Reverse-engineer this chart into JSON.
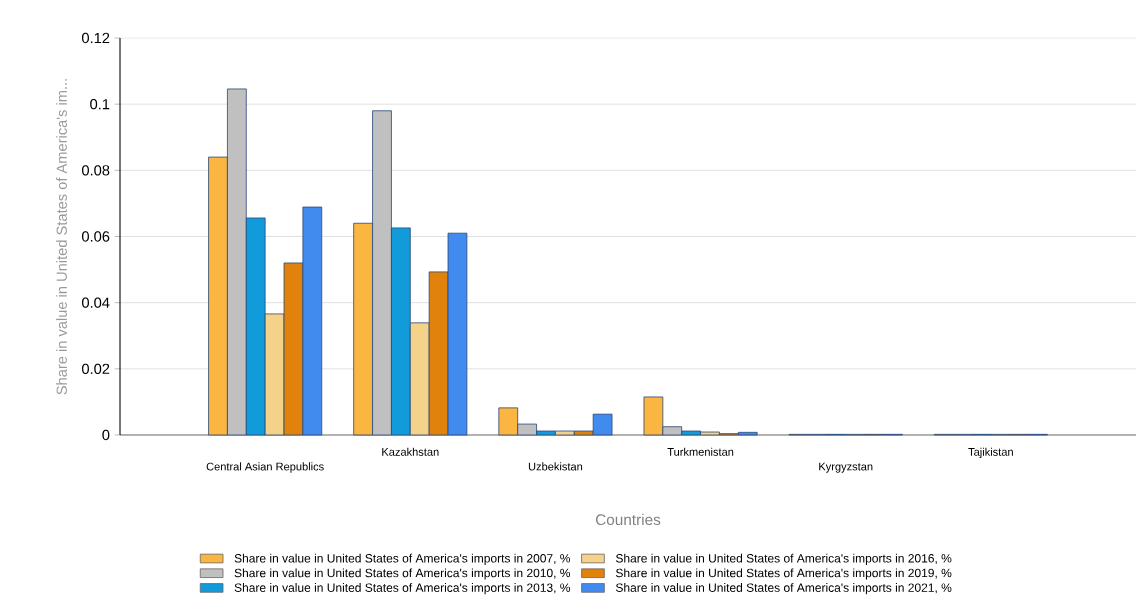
{
  "chart_data": {
    "type": "bar",
    "xlabel": "Countries",
    "ylabel": "Share in value in United States of America's im...",
    "categories": [
      "Central Asian Republics",
      "Kazakhstan",
      "Uzbekistan",
      "Turkmenistan",
      "Kyrgyzstan",
      "Tajikistan"
    ],
    "series": [
      {
        "name": "Share in value in United States of America's imports in 2007, %",
        "color": "#fbb642",
        "values": [
          0.084,
          0.064,
          0.0082,
          0.0115,
          0.0002,
          0.0002
        ]
      },
      {
        "name": "Share in value in United States of America's imports in 2010, %",
        "color": "#c0c0c0",
        "values": [
          0.1046,
          0.098,
          0.0033,
          0.0025,
          0.0002,
          0.0002
        ]
      },
      {
        "name": "Share in value in United States of America's imports in 2013, %",
        "color": "#129bdb",
        "values": [
          0.0656,
          0.0626,
          0.0012,
          0.0012,
          0.0002,
          0.0002
        ]
      },
      {
        "name": "Share in value in United States of America's imports in 2016, %",
        "color": "#f4d28a",
        "values": [
          0.0366,
          0.0339,
          0.0012,
          0.0009,
          0.0002,
          0.0002
        ]
      },
      {
        "name": "Share in value in United States of America's imports in 2019, %",
        "color": "#e0820c",
        "values": [
          0.052,
          0.0493,
          0.0012,
          0.0004,
          0.0002,
          0.0002
        ]
      },
      {
        "name": "Share in value in United States of America's imports in 2021, %",
        "color": "#418bef",
        "values": [
          0.0689,
          0.061,
          0.0063,
          0.0008,
          0.0002,
          0.0002
        ]
      }
    ],
    "ylim": [
      0,
      0.12
    ],
    "yticks": [
      0,
      0.02,
      0.04,
      0.06,
      0.08,
      0.1,
      0.12
    ],
    "grid": "y",
    "legend": "bottom"
  }
}
